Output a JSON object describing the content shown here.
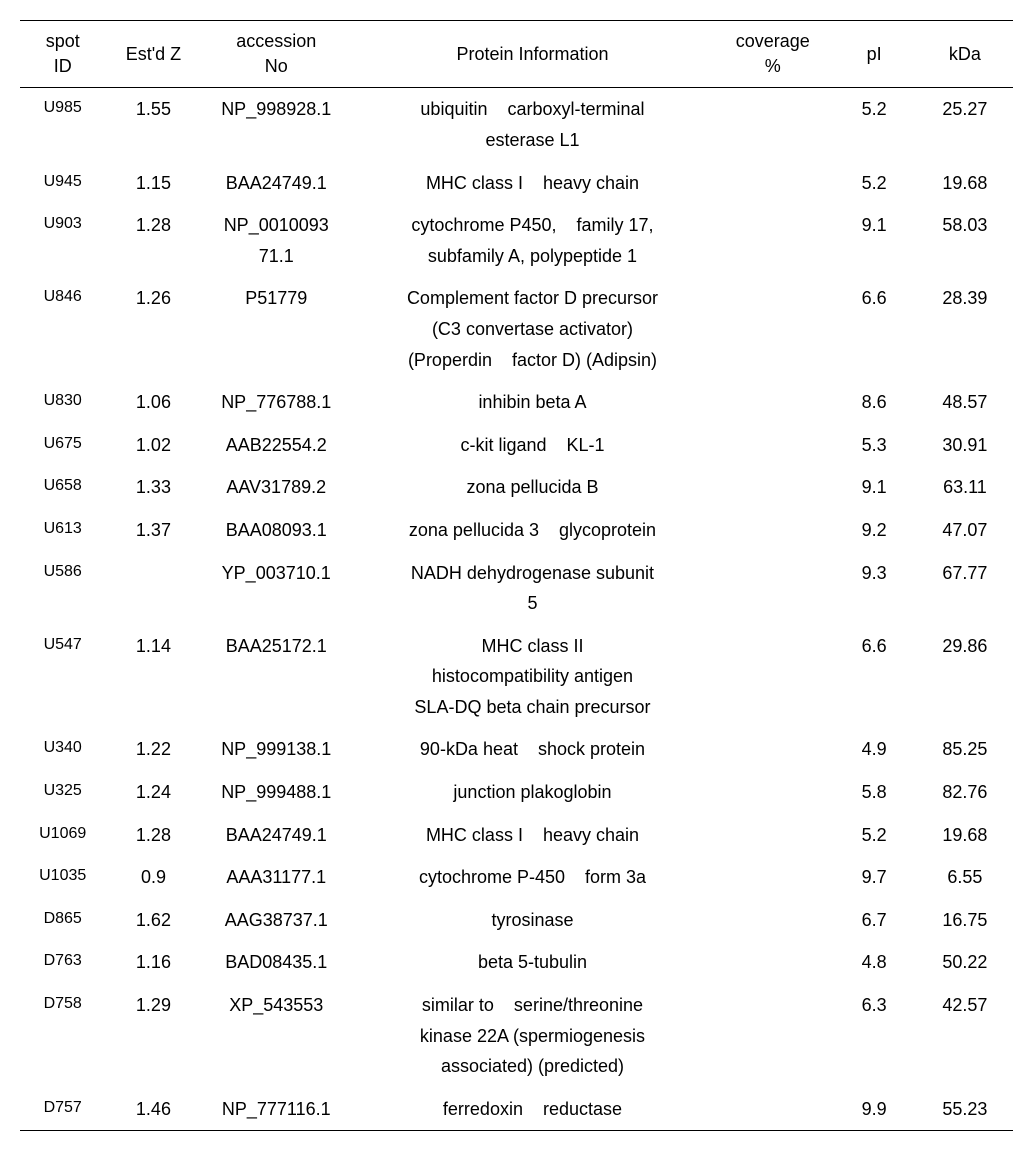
{
  "table": {
    "columns": [
      {
        "key": "spot_id",
        "label": "spot\nID",
        "class": "col-spot"
      },
      {
        "key": "estd_z",
        "label": "Est'd Z",
        "class": "col-estd"
      },
      {
        "key": "accession",
        "label": "accession\nNo",
        "class": "col-accession"
      },
      {
        "key": "protein",
        "label": "Protein Information",
        "class": "col-protein"
      },
      {
        "key": "coverage",
        "label": "coverage\n%",
        "class": "col-coverage"
      },
      {
        "key": "pi",
        "label": "pI",
        "class": "col-pi"
      },
      {
        "key": "kda",
        "label": "kDa",
        "class": "col-kda"
      }
    ],
    "rows": [
      {
        "spot_id": "U985",
        "estd_z": "1.55",
        "accession": "NP_998928.1",
        "protein": "ubiquitin    carboxyl-terminal\nesterase L1",
        "coverage": "",
        "pi": "5.2",
        "kda": "25.27"
      },
      {
        "spot_id": "U945",
        "estd_z": "1.15",
        "accession": "BAA24749.1",
        "protein": "MHC class I    heavy chain",
        "coverage": "",
        "pi": "5.2",
        "kda": "19.68"
      },
      {
        "spot_id": "U903",
        "estd_z": "1.28",
        "accession": "NP_0010093\n71.1",
        "protein": "cytochrome P450,    family 17,\nsubfamily A, polypeptide 1",
        "coverage": "",
        "pi": "9.1",
        "kda": "58.03"
      },
      {
        "spot_id": "U846",
        "estd_z": "1.26",
        "accession": "P51779",
        "protein": "Complement factor D precursor\n(C3 convertase activator)\n(Properdin    factor D) (Adipsin)",
        "coverage": "",
        "pi": "6.6",
        "kda": "28.39"
      },
      {
        "spot_id": "U830",
        "estd_z": "1.06",
        "accession": "NP_776788.1",
        "protein": "inhibin beta A",
        "coverage": "",
        "pi": "8.6",
        "kda": "48.57"
      },
      {
        "spot_id": "U675",
        "estd_z": "1.02",
        "accession": "AAB22554.2",
        "protein": "c-kit ligand    KL-1",
        "coverage": "",
        "pi": "5.3",
        "kda": "30.91"
      },
      {
        "spot_id": "U658",
        "estd_z": "1.33",
        "accession": "AAV31789.2",
        "protein": "zona pellucida B",
        "coverage": "",
        "pi": "9.1",
        "kda": "63.11"
      },
      {
        "spot_id": "U613",
        "estd_z": "1.37",
        "accession": "BAA08093.1",
        "protein": "zona pellucida 3    glycoprotein",
        "coverage": "",
        "pi": "9.2",
        "kda": "47.07"
      },
      {
        "spot_id": "U586",
        "estd_z": "",
        "accession": "YP_003710.1",
        "protein": "NADH dehydrogenase subunit\n5",
        "coverage": "",
        "pi": "9.3",
        "kda": "67.77"
      },
      {
        "spot_id": "U547",
        "estd_z": "1.14",
        "accession": "BAA25172.1",
        "protein": "MHC class II\nhistocompatibility antigen\nSLA-DQ beta chain precursor",
        "coverage": "",
        "pi": "6.6",
        "kda": "29.86"
      },
      {
        "spot_id": "U340",
        "estd_z": "1.22",
        "accession": "NP_999138.1",
        "protein": "90-kDa heat    shock protein",
        "coverage": "",
        "pi": "4.9",
        "kda": "85.25"
      },
      {
        "spot_id": "U325",
        "estd_z": "1.24",
        "accession": "NP_999488.1",
        "protein": "junction plakoglobin",
        "coverage": "",
        "pi": "5.8",
        "kda": "82.76"
      },
      {
        "spot_id": "U1069",
        "estd_z": "1.28",
        "accession": "BAA24749.1",
        "protein": "MHC class I    heavy chain",
        "coverage": "",
        "pi": "5.2",
        "kda": "19.68"
      },
      {
        "spot_id": "U1035",
        "estd_z": "0.9",
        "accession": "AAA31177.1",
        "protein": "cytochrome P-450    form 3a",
        "coverage": "",
        "pi": "9.7",
        "kda": "6.55"
      },
      {
        "spot_id": "D865",
        "estd_z": "1.62",
        "accession": "AAG38737.1",
        "protein": "tyrosinase",
        "coverage": "",
        "pi": "6.7",
        "kda": "16.75"
      },
      {
        "spot_id": "D763",
        "estd_z": "1.16",
        "accession": "BAD08435.1",
        "protein": "beta 5-tubulin",
        "coverage": "",
        "pi": "4.8",
        "kda": "50.22"
      },
      {
        "spot_id": "D758",
        "estd_z": "1.29",
        "accession": "XP_543553",
        "protein": "similar to    serine/threonine\nkinase 22A (spermiogenesis\nassociated) (predicted)",
        "coverage": "",
        "pi": "6.3",
        "kda": "42.57"
      },
      {
        "spot_id": "D757",
        "estd_z": "1.46",
        "accession": "NP_777116.1",
        "protein": "ferredoxin    reductase",
        "coverage": "",
        "pi": "9.9",
        "kda": "55.23"
      }
    ]
  }
}
